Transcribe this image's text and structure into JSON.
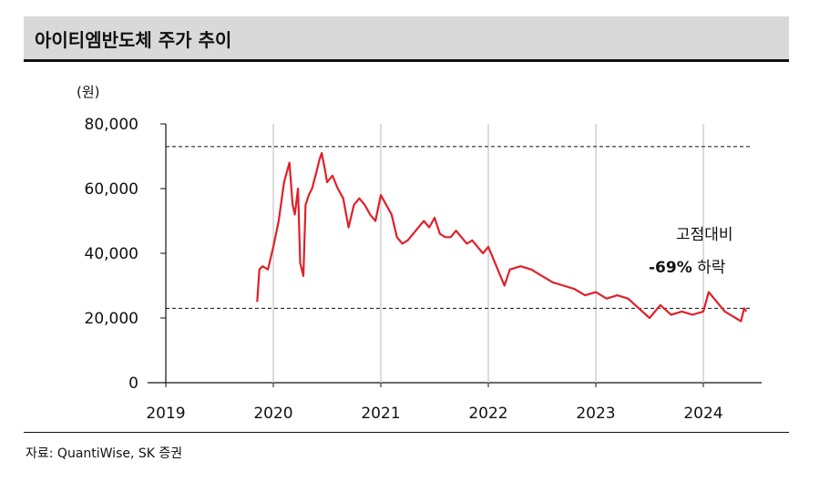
{
  "title": "아이티엠반도체 주가 추이",
  "chart_data": {
    "type": "line",
    "title": "아이티엠반도체 주가 추이",
    "ylabel": "(원)",
    "xlabel": "",
    "ylim": [
      0,
      80000
    ],
    "xlim": [
      2019,
      2024.5
    ],
    "y_ticks": [
      "0",
      "20,000",
      "40,000",
      "60,000",
      "80,000"
    ],
    "x_ticks": [
      "2019",
      "2020",
      "2021",
      "2022",
      "2023",
      "2024"
    ],
    "reference_lines": [
      73000,
      23000
    ],
    "series": [
      {
        "color": "#e0202a",
        "x": [
          2019.85,
          2019.87,
          2019.9,
          2019.95,
          2020.0,
          2020.05,
          2020.1,
          2020.15,
          2020.18,
          2020.2,
          2020.23,
          2020.25,
          2020.28,
          2020.3,
          2020.33,
          2020.36,
          2020.4,
          2020.43,
          2020.45,
          2020.48,
          2020.5,
          2020.55,
          2020.6,
          2020.65,
          2020.7,
          2020.75,
          2020.8,
          2020.85,
          2020.9,
          2020.95,
          2021.0,
          2021.05,
          2021.1,
          2021.15,
          2021.2,
          2021.25,
          2021.3,
          2021.35,
          2021.4,
          2021.45,
          2021.5,
          2021.55,
          2021.6,
          2021.65,
          2021.7,
          2021.75,
          2021.8,
          2021.85,
          2021.9,
          2021.95,
          2022.0,
          2022.05,
          2022.1,
          2022.15,
          2022.2,
          2022.3,
          2022.4,
          2022.5,
          2022.6,
          2022.7,
          2022.8,
          2022.9,
          2023.0,
          2023.1,
          2023.2,
          2023.3,
          2023.4,
          2023.5,
          2023.55,
          2023.6,
          2023.7,
          2023.8,
          2023.9,
          2024.0,
          2024.05,
          2024.1,
          2024.15,
          2024.2,
          2024.25,
          2024.3,
          2024.35,
          2024.38,
          2024.4
        ],
        "y": [
          25000,
          35000,
          36000,
          35000,
          42000,
          50000,
          62000,
          68000,
          55000,
          52000,
          60000,
          37000,
          33000,
          55000,
          58000,
          60000,
          65000,
          69000,
          71000,
          66000,
          62000,
          64000,
          60000,
          57000,
          48000,
          55000,
          57000,
          55000,
          52000,
          50000,
          58000,
          55000,
          52000,
          45000,
          43000,
          44000,
          46000,
          48000,
          50000,
          48000,
          51000,
          46000,
          45000,
          45000,
          47000,
          45000,
          43000,
          44000,
          42000,
          40000,
          42000,
          38000,
          34000,
          30000,
          35000,
          36000,
          35000,
          33000,
          31000,
          30000,
          29000,
          27000,
          28000,
          26000,
          27000,
          26000,
          23000,
          20000,
          22000,
          24000,
          21000,
          22000,
          21000,
          22000,
          28000,
          26000,
          24000,
          22000,
          21000,
          20000,
          19000,
          23000,
          22000
        ]
      }
    ],
    "annotations": [
      "고점대비",
      "-69%",
      "하락"
    ]
  },
  "note": {
    "line1": "고점대비",
    "line2_bold": "-69%",
    "line2_rest": "하락"
  },
  "source": "자료: QuantiWise, SK 증권"
}
